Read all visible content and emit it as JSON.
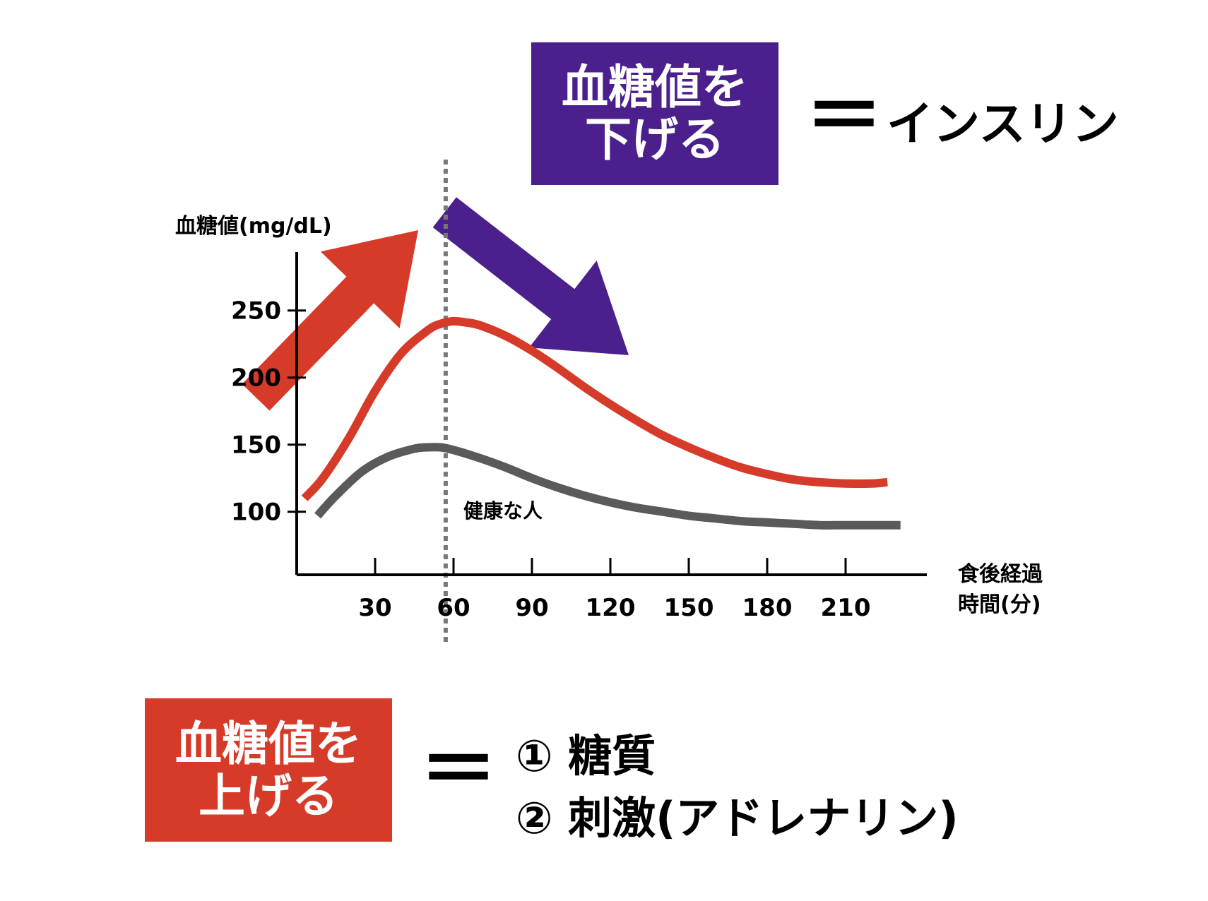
{
  "colors": {
    "insulin_box": "#4b1f8c",
    "raise_box": "#d63a28",
    "glucose_curve": "#d63a28",
    "healthy_curve": "#5a5a5a",
    "up_arrow": "#d63a28",
    "down_arrow": "#4b1f8c"
  },
  "lower_box": {
    "line1": "血糖値を",
    "line2": "下げる"
  },
  "lower_equals": "＝",
  "lower_agent": "インスリン",
  "raise_box": {
    "line1": "血糖値を",
    "line2": "上げる"
  },
  "raise_equals": "＝",
  "raise_causes": [
    "① 糖質",
    "② 刺激(アドレナリン)"
  ],
  "chart_data": {
    "type": "line",
    "ylabel": "血糖値(mg/dL)",
    "xlabel_line1": "食後経過",
    "xlabel_line2": "時間(分)",
    "x_ticks": [
      30,
      60,
      90,
      120,
      150,
      180,
      210
    ],
    "y_ticks": [
      100,
      150,
      200,
      250
    ],
    "xlim": [
      0,
      240
    ],
    "ylim": [
      53,
      295
    ],
    "marker_x": 57,
    "healthy_label": "健康な人",
    "series": [
      {
        "key": "high",
        "color": "#d63a28",
        "x": [
          3,
          10,
          20,
          30,
          40,
          50,
          55,
          60,
          65,
          70,
          80,
          90,
          100,
          110,
          120,
          130,
          140,
          150,
          160,
          170,
          180,
          190,
          200,
          210,
          220,
          226
        ],
        "y": [
          110,
          125,
          155,
          190,
          218,
          235,
          240,
          242,
          241,
          239,
          231,
          220,
          207,
          193,
          180,
          168,
          157,
          148,
          140,
          133,
          128,
          124,
          122,
          121,
          121,
          122
        ]
      },
      {
        "key": "healthy",
        "name": "健康な人",
        "color": "#5a5a5a",
        "x": [
          8,
          15,
          25,
          35,
          45,
          50,
          55,
          60,
          70,
          80,
          90,
          100,
          110,
          120,
          130,
          140,
          150,
          160,
          170,
          180,
          190,
          200,
          210,
          220,
          231
        ],
        "y": [
          97,
          112,
          130,
          141,
          147,
          148,
          148,
          146,
          140,
          133,
          125,
          118,
          112,
          107,
          103,
          100,
          97,
          95,
          93,
          92,
          91,
          90,
          90,
          90,
          90
        ]
      }
    ]
  }
}
